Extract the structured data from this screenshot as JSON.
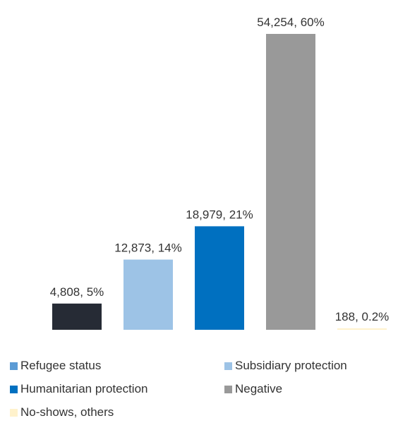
{
  "chart_data": {
    "type": "bar",
    "categories": [
      "Refugee status",
      "Subsidiary protection",
      "Humanitarian protection",
      "Negative",
      "No-shows, others"
    ],
    "values": [
      4808,
      12873,
      18979,
      54254,
      188
    ],
    "percentages": [
      "5%",
      "14%",
      "21%",
      "60%",
      "0.2%"
    ],
    "data_labels": [
      "4,808, 5%",
      "12,873, 14%",
      "18,979, 21%",
      "54,254, 60%",
      "188, 0.2%"
    ],
    "bar_colors": [
      "#262b35",
      "#9dc3e6",
      "#0070c0",
      "#999999",
      "#fff2cc"
    ],
    "legend_colors": [
      "#5b9bd5",
      "#9dc3e6",
      "#0070c0",
      "#999999",
      "#fff2cc"
    ],
    "ylim": [
      0,
      54254
    ],
    "grid": false,
    "legend_position": "bottom",
    "title": "",
    "xlabel": "",
    "ylabel": ""
  },
  "legend": {
    "items": [
      {
        "label": "Refugee status",
        "color": "#5b9bd5"
      },
      {
        "label": "Subsidiary protection",
        "color": "#9dc3e6"
      },
      {
        "label": "Humanitarian protection",
        "color": "#0070c0"
      },
      {
        "label": "Negative",
        "color": "#999999"
      },
      {
        "label": "No-shows, others",
        "color": "#fff2cc"
      }
    ]
  }
}
